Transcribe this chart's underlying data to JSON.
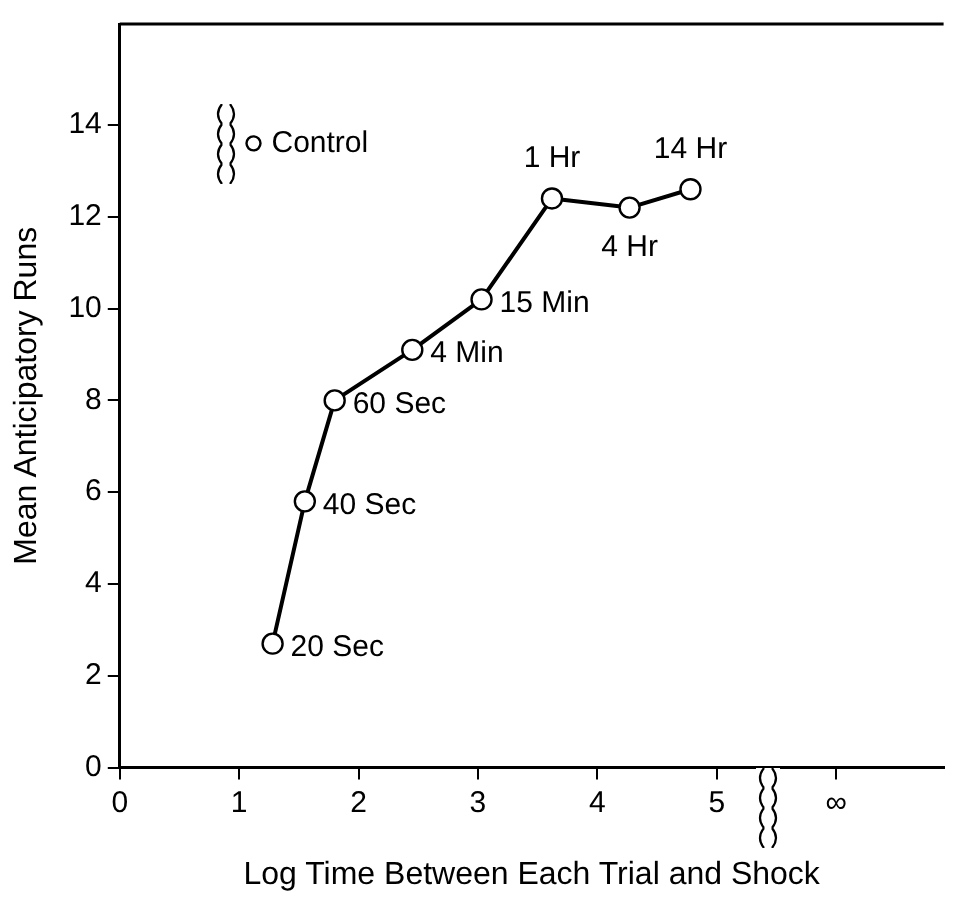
{
  "chart_data": {
    "type": "line",
    "xlabel": "Log Time Between Each Trial and Shock",
    "ylabel": "Mean Anticipatory Runs",
    "xlim": [
      0,
      6.9
    ],
    "xticks": [
      0,
      1,
      2,
      3,
      4,
      5,
      {
        "value": 6,
        "label": "∞"
      }
    ],
    "ylim": [
      0,
      16.2
    ],
    "yticks": [
      0,
      2,
      4,
      6,
      8,
      10,
      12,
      14
    ],
    "grid": false,
    "legend": "top left",
    "marker": "circle",
    "line_style": "solid",
    "series": [
      {
        "color": "#000000",
        "x": [
          1.28,
          1.55,
          1.8,
          2.45,
          3.03,
          3.62,
          4.27,
          4.78
        ],
        "values": [
          2.7,
          5.8,
          8.0,
          9.1,
          10.2,
          12.4,
          12.2,
          12.6
        ]
      },
      {
        "type": "scatter",
        "name": "Control",
        "color": "#000000",
        "x": [
          1.12
        ],
        "values": [
          13.6
        ]
      }
    ],
    "annotations": [
      {
        "text": "20 Sec",
        "x": 1.28,
        "y": 2.7
      },
      {
        "text": "40 Sec",
        "x": 1.55,
        "y": 5.8
      },
      {
        "text": "60 Sec",
        "x": 1.8,
        "y": 8.0
      },
      {
        "text": "4 Min",
        "x": 2.45,
        "y": 9.1
      },
      {
        "text": "15 Min",
        "x": 3.03,
        "y": 10.2
      },
      {
        "text": "1 Hr",
        "x": 3.62,
        "y": 12.4
      },
      {
        "text": "4 Hr",
        "x": 4.27,
        "y": 12.2
      },
      {
        "text": "14 Hr",
        "x": 4.78,
        "y": 12.6
      }
    ]
  }
}
